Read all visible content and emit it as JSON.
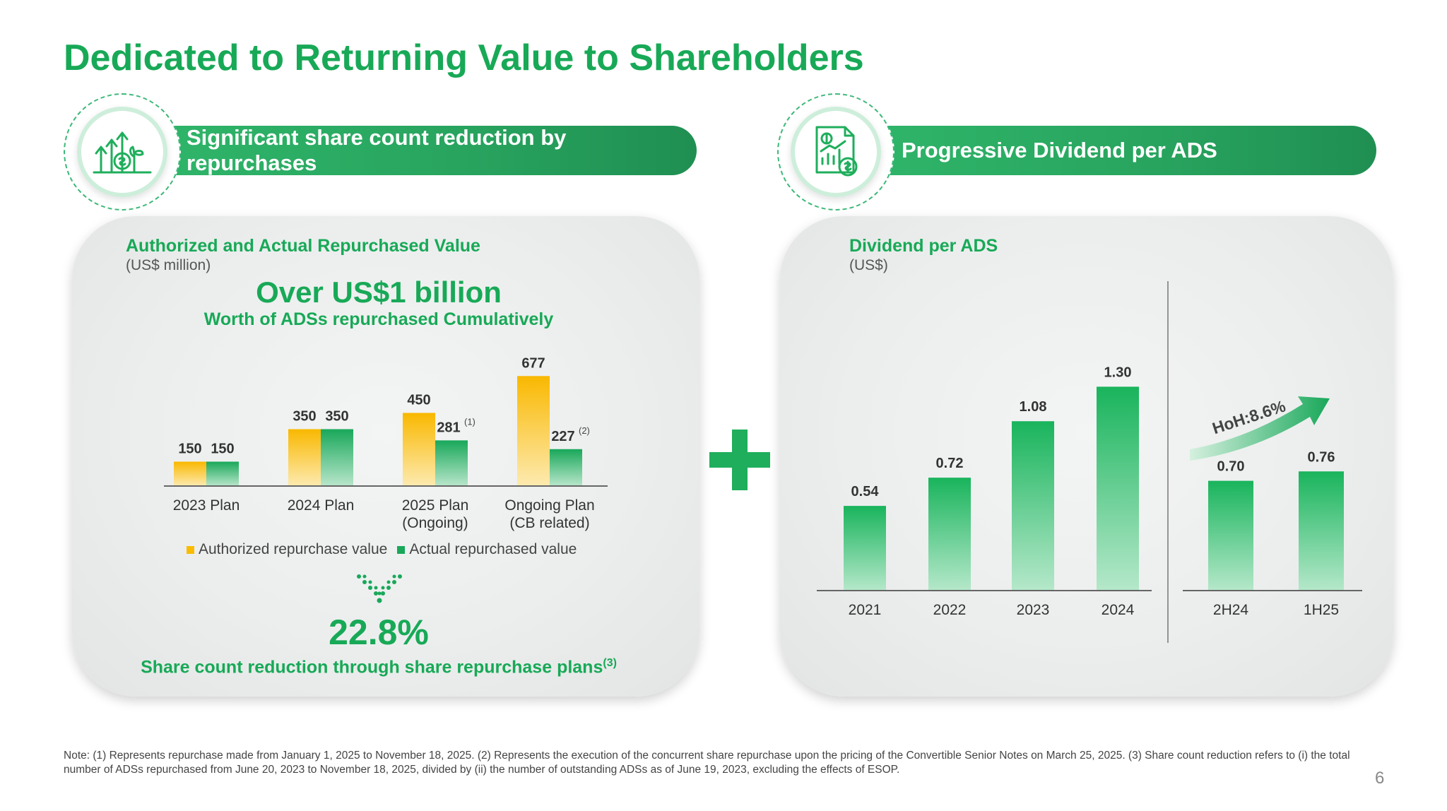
{
  "title": "Dedicated to Returning Value to Shareholders",
  "left_section": {
    "header": "Significant share count reduction by repurchases",
    "chart_title": "Authorized and Actual Repurchased Value",
    "chart_unit": "(US$ million)",
    "headline": "Over US$1 billion",
    "subheadline": "Worth of ADSs repurchased Cumulatively",
    "stat_value": "22.8%",
    "stat_label": "Share count reduction through share repurchase plans",
    "stat_superscript": "(3)",
    "legend": [
      "Authorized repurchase value",
      "Actual repurchased value"
    ]
  },
  "right_section": {
    "header": "Progressive Dividend per ADS",
    "chart_title": "Dividend per ADS",
    "chart_unit": "(US$)",
    "hoh_label": "HoH:8.6%"
  },
  "colors": {
    "brand_green": "#18a957",
    "authorized": "#f9bc00",
    "actual": "#19a85a"
  },
  "chart_data": [
    {
      "type": "bar",
      "categories": [
        "2023 Plan",
        "2024 Plan",
        "2025 Plan\n(Ongoing)",
        "Ongoing Plan\n(CB related)"
      ],
      "series": [
        {
          "name": "Authorized repurchase value",
          "values": [
            150,
            350,
            450,
            677
          ],
          "labels": [
            "150",
            "350",
            "450",
            "677"
          ],
          "notes": [
            "",
            "",
            "",
            ""
          ]
        },
        {
          "name": "Actual repurchased value",
          "values": [
            150,
            350,
            281,
            227
          ],
          "labels": [
            "150",
            "350",
            "281",
            "227"
          ],
          "notes": [
            "",
            "",
            "(1)",
            "(2)"
          ]
        }
      ],
      "ylim": [
        0,
        700
      ],
      "legend": "bottom"
    },
    {
      "type": "bar",
      "categories": [
        "2021",
        "2022",
        "2023",
        "2024"
      ],
      "values": [
        0.54,
        0.72,
        1.08,
        1.3
      ],
      "labels": [
        "0.54",
        "0.72",
        "1.08",
        "1.30"
      ],
      "ylim": [
        0,
        1.35
      ]
    },
    {
      "type": "bar",
      "categories": [
        "2H24",
        "1H25"
      ],
      "values": [
        0.7,
        0.76
      ],
      "labels": [
        "0.70",
        "0.76"
      ],
      "annotation": "HoH:8.6%",
      "ylim": [
        0,
        1.35
      ]
    }
  ],
  "footnote": "Note: (1) Represents repurchase made from January 1, 2025 to November 18, 2025. (2) Represents the execution of the concurrent share repurchase upon the pricing of the Convertible Senior Notes on March 25, 2025. (3) Share count reduction refers to (i) the total number of ADSs repurchased from June 20, 2023 to November 18, 2025, divided by (ii) the number of outstanding ADSs as of June 19, 2023, excluding the effects of ESOP.",
  "page_number": "6"
}
